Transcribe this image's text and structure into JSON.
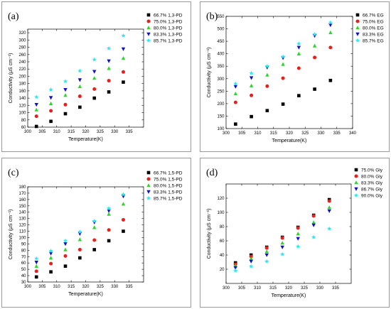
{
  "colors": {
    "black": "#000000",
    "red": "#e8201c",
    "green": "#2dd52d",
    "blue": "#1010c8",
    "cyan": "#2ee8f0"
  },
  "chart_data": [
    {
      "id": "a",
      "type": "scatter",
      "panel_label": "(a)",
      "xlabel": "Temperature(K)",
      "ylabel": "Conductivity (μS cm⁻¹)",
      "xlim": [
        300,
        340
      ],
      "ylim": [
        60,
        330
      ],
      "xticks": [
        300,
        305,
        310,
        315,
        320,
        325,
        330,
        335
      ],
      "yticks": [
        60,
        80,
        100,
        120,
        140,
        160,
        180,
        200,
        220,
        240,
        260,
        280,
        300,
        320
      ],
      "legend_position": "top-right",
      "x": [
        303,
        308,
        313,
        318,
        323,
        328,
        333
      ],
      "series": [
        {
          "name": "66.7% 1,3-PD",
          "color": "#000000",
          "marker": "square",
          "values": [
            62,
            76,
            97,
            115,
            140,
            157,
            184
          ]
        },
        {
          "name": "75.0% 1,3-PD",
          "color": "#e8201c",
          "marker": "circle",
          "values": [
            90,
            105,
            122,
            145,
            165,
            188,
            212
          ]
        },
        {
          "name": "80.0% 1,3-PD",
          "color": "#2dd52d",
          "marker": "triangle-up",
          "values": [
            108,
            125,
            148,
            172,
            195,
            222,
            250
          ]
        },
        {
          "name": "83.3% 1,3-PD",
          "color": "#1010c8",
          "marker": "triangle-down",
          "values": [
            122,
            141,
            163,
            190,
            213,
            242,
            275
          ]
        },
        {
          "name": "85.7% 1,3-PD",
          "color": "#2ee8f0",
          "marker": "star",
          "values": [
            143,
            163,
            186,
            215,
            246,
            277,
            312
          ]
        }
      ]
    },
    {
      "id": "b",
      "type": "scatter",
      "panel_label": "(b)",
      "xlabel": "Temperature(K)",
      "ylabel": "Conductivity (μS cm⁻¹)",
      "xlim": [
        300,
        340
      ],
      "ylim": [
        100,
        550
      ],
      "xticks": [
        300,
        305,
        310,
        315,
        320,
        325,
        330,
        335,
        340
      ],
      "yticks": [
        100,
        150,
        200,
        250,
        300,
        350,
        400,
        450,
        500,
        550
      ],
      "legend_position": "top-right",
      "x": [
        303,
        308,
        313,
        318,
        323,
        328,
        333
      ],
      "series": [
        {
          "name": "66.7% EG",
          "color": "#000000",
          "marker": "square",
          "values": [
            118,
            148,
            172,
            198,
            232,
            258,
            293
          ]
        },
        {
          "name": "75.0% EG",
          "color": "#e8201c",
          "marker": "circle",
          "values": [
            205,
            233,
            270,
            302,
            342,
            385,
            425
          ]
        },
        {
          "name": "80.0% EG",
          "color": "#2dd52d",
          "marker": "triangle-up",
          "values": [
            240,
            272,
            315,
            358,
            400,
            432,
            485
          ]
        },
        {
          "name": "83.3% EG",
          "color": "#1010c8",
          "marker": "triangle-down",
          "values": [
            268,
            303,
            345,
            383,
            425,
            472,
            515
          ]
        },
        {
          "name": "85.7% EG",
          "color": "#2ee8f0",
          "marker": "star",
          "values": [
            280,
            322,
            350,
            388,
            440,
            478,
            525
          ]
        }
      ]
    },
    {
      "id": "c",
      "type": "scatter",
      "panel_label": "(c)",
      "xlabel": "Temperature(K)",
      "ylabel": "Conductivity (μS cm⁻¹)",
      "xlim": [
        300,
        340
      ],
      "ylim": [
        30,
        180
      ],
      "xticks": [
        300,
        305,
        310,
        315,
        320,
        325,
        330,
        335
      ],
      "yticks": [
        30,
        40,
        50,
        60,
        70,
        80,
        90,
        100,
        110,
        120,
        130,
        140,
        150,
        160,
        170,
        180
      ],
      "legend_position": "top-right",
      "x": [
        303,
        308,
        313,
        318,
        323,
        328,
        333
      ],
      "series": [
        {
          "name": "66.7% 1,5-PD",
          "color": "#000000",
          "marker": "square",
          "values": [
            38,
            46,
            55,
            68,
            81,
            95,
            110
          ]
        },
        {
          "name": "75.0% 1,5-PD",
          "color": "#e8201c",
          "marker": "circle",
          "values": [
            47,
            59,
            71,
            81,
            96,
            112,
            128
          ]
        },
        {
          "name": "80.0% 1,5-PD",
          "color": "#2dd52d",
          "marker": "triangle-up",
          "values": [
            55,
            68,
            81,
            97,
            116,
            137,
            153
          ]
        },
        {
          "name": "83.3% 1,5-PD",
          "color": "#1010c8",
          "marker": "triangle-down",
          "values": [
            61,
            75,
            90,
            106,
            124,
            142,
            165
          ]
        },
        {
          "name": "85.7% 1,5-PD",
          "color": "#2ee8f0",
          "marker": "star",
          "values": [
            67,
            79,
            95,
            109,
            126,
            146,
            168
          ]
        }
      ]
    },
    {
      "id": "d",
      "type": "scatter",
      "panel_label": "(d)",
      "xlabel": "Temperature(K)",
      "ylabel": "Conductivity (μS cm⁻¹)",
      "xlim": [
        300,
        340
      ],
      "ylim": [
        0,
        140
      ],
      "xticks": [
        300,
        305,
        310,
        315,
        320,
        325,
        330,
        335
      ],
      "yticks": [
        20,
        40,
        60,
        80,
        100,
        120
      ],
      "legend_position": "top-right",
      "x": [
        303,
        308,
        313,
        318,
        323,
        328,
        333
      ],
      "series": [
        {
          "name": "75.0% Gly",
          "color": "#000000",
          "marker": "square",
          "values": [
            29,
            40,
            51,
            65,
            79,
            96,
            118
          ]
        },
        {
          "name": "80.0% Gly",
          "color": "#e8201c",
          "marker": "circle",
          "values": [
            27,
            38,
            50,
            64,
            78,
            95,
            116
          ]
        },
        {
          "name": "83.3% Gly",
          "color": "#2dd52d",
          "marker": "triangle-up",
          "values": [
            25,
            35,
            45,
            57,
            70,
            86,
            107
          ]
        },
        {
          "name": "86.7% Gly",
          "color": "#1010c8",
          "marker": "triangle-down",
          "values": [
            22,
            31,
            40,
            51,
            63,
            82,
            102
          ]
        },
        {
          "name": "90.0% Gly",
          "color": "#2ee8f0",
          "marker": "star",
          "values": [
            18,
            24,
            31,
            41,
            52,
            65,
            77
          ]
        }
      ]
    }
  ]
}
